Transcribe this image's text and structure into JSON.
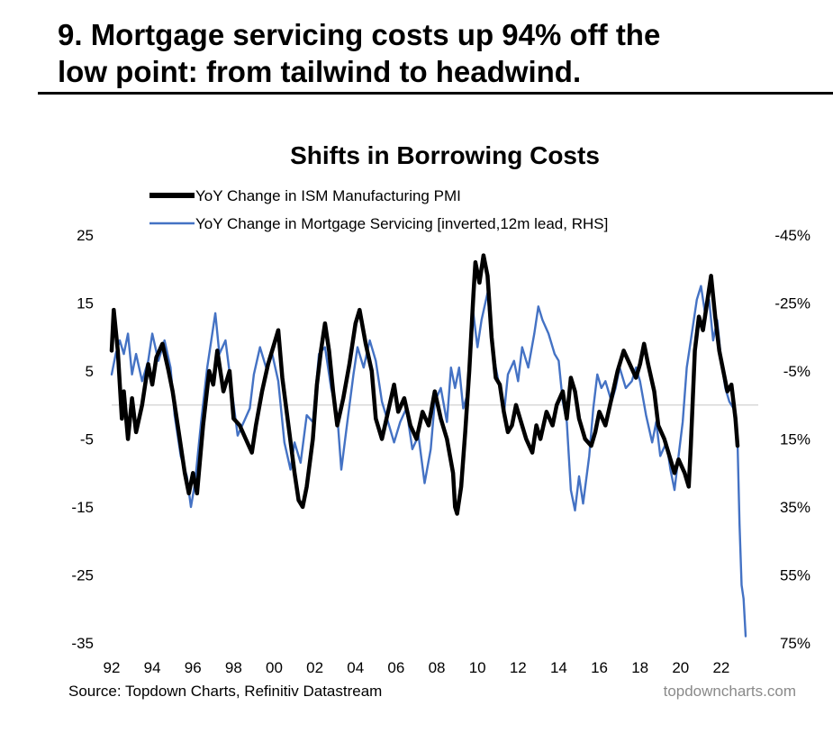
{
  "headline": {
    "line1": "9. Mortgage servicing costs up 94% off the",
    "line2": "low point: from tailwind to headwind."
  },
  "chart_data": {
    "type": "line",
    "title": "Shifts in Borrowing Costs",
    "legend_position": "top-left",
    "grid": false,
    "x_tick_labels": [
      "92",
      "94",
      "96",
      "98",
      "00",
      "02",
      "04",
      "06",
      "08",
      "10",
      "12",
      "14",
      "16",
      "18",
      "20",
      "22"
    ],
    "x_tick_years": [
      1992,
      1994,
      1996,
      1998,
      2000,
      2002,
      2004,
      2006,
      2008,
      2010,
      2012,
      2014,
      2016,
      2018,
      2020,
      2022
    ],
    "xlim": [
      1992,
      2023.2
    ],
    "y_left": {
      "lim": [
        -35,
        25
      ],
      "ticks": [
        25,
        15,
        5,
        -5,
        -15,
        -25,
        -35
      ],
      "labels": [
        "25",
        "15",
        "5",
        "-5",
        "-15",
        "-25",
        "-35"
      ]
    },
    "y_right": {
      "lim": [
        75,
        -45
      ],
      "inverted": true,
      "ticks": [
        -45,
        -25,
        -5,
        15,
        35,
        55,
        75
      ],
      "labels": [
        "-45%",
        "-25%",
        "-5%",
        "15%",
        "35%",
        "55%",
        "75%"
      ]
    },
    "zero_line": 0,
    "colors": {
      "pmi": "#000000",
      "mortgage": "#4472c4",
      "zero_line": "#d9d9d9"
    },
    "series": [
      {
        "name": "YoY Change in ISM Manufacturing PMI",
        "axis": "left",
        "color": "#000000",
        "points": [
          [
            1992.0,
            8
          ],
          [
            1992.1,
            14
          ],
          [
            1992.3,
            8
          ],
          [
            1992.5,
            -2
          ],
          [
            1992.6,
            2
          ],
          [
            1992.8,
            -5
          ],
          [
            1993.0,
            1
          ],
          [
            1993.2,
            -4
          ],
          [
            1993.5,
            0
          ],
          [
            1993.8,
            6
          ],
          [
            1994.0,
            3
          ],
          [
            1994.2,
            7
          ],
          [
            1994.5,
            9
          ],
          [
            1994.8,
            5
          ],
          [
            1995.0,
            2
          ],
          [
            1995.3,
            -4
          ],
          [
            1995.6,
            -10
          ],
          [
            1995.8,
            -13
          ],
          [
            1996.0,
            -10
          ],
          [
            1996.2,
            -13
          ],
          [
            1996.5,
            -3
          ],
          [
            1996.8,
            5
          ],
          [
            1997.0,
            3
          ],
          [
            1997.2,
            8
          ],
          [
            1997.5,
            2
          ],
          [
            1997.8,
            5
          ],
          [
            1998.0,
            -2
          ],
          [
            1998.3,
            -3
          ],
          [
            1998.6,
            -5
          ],
          [
            1998.9,
            -7
          ],
          [
            1999.1,
            -3
          ],
          [
            1999.4,
            2
          ],
          [
            1999.7,
            6
          ],
          [
            2000.0,
            9
          ],
          [
            2000.2,
            11
          ],
          [
            2000.4,
            4
          ],
          [
            2000.7,
            -3
          ],
          [
            2001.0,
            -10
          ],
          [
            2001.2,
            -14
          ],
          [
            2001.4,
            -15
          ],
          [
            2001.6,
            -12
          ],
          [
            2001.9,
            -5
          ],
          [
            2002.1,
            3
          ],
          [
            2002.3,
            8
          ],
          [
            2002.5,
            12
          ],
          [
            2002.7,
            8
          ],
          [
            2002.9,
            2
          ],
          [
            2003.1,
            -3
          ],
          [
            2003.4,
            1
          ],
          [
            2003.7,
            6
          ],
          [
            2004.0,
            12
          ],
          [
            2004.2,
            14
          ],
          [
            2004.5,
            9
          ],
          [
            2004.8,
            5
          ],
          [
            2005.0,
            -2
          ],
          [
            2005.3,
            -5
          ],
          [
            2005.6,
            -1
          ],
          [
            2005.9,
            3
          ],
          [
            2006.1,
            -1
          ],
          [
            2006.4,
            1
          ],
          [
            2006.7,
            -3
          ],
          [
            2007.0,
            -5
          ],
          [
            2007.3,
            -1
          ],
          [
            2007.6,
            -3
          ],
          [
            2007.9,
            2
          ],
          [
            2008.2,
            -2
          ],
          [
            2008.5,
            -5
          ],
          [
            2008.8,
            -10
          ],
          [
            2008.9,
            -15
          ],
          [
            2009.0,
            -16
          ],
          [
            2009.2,
            -12
          ],
          [
            2009.4,
            -4
          ],
          [
            2009.6,
            5
          ],
          [
            2009.8,
            16
          ],
          [
            2009.9,
            21
          ],
          [
            2010.1,
            18
          ],
          [
            2010.3,
            22
          ],
          [
            2010.5,
            19
          ],
          [
            2010.7,
            10
          ],
          [
            2010.9,
            4
          ],
          [
            2011.1,
            3
          ],
          [
            2011.3,
            -1
          ],
          [
            2011.5,
            -4
          ],
          [
            2011.7,
            -3
          ],
          [
            2011.9,
            0
          ],
          [
            2012.1,
            -2
          ],
          [
            2012.4,
            -5
          ],
          [
            2012.7,
            -7
          ],
          [
            2012.9,
            -3
          ],
          [
            2013.1,
            -5
          ],
          [
            2013.4,
            -1
          ],
          [
            2013.7,
            -3
          ],
          [
            2013.9,
            0
          ],
          [
            2014.2,
            2
          ],
          [
            2014.4,
            -2
          ],
          [
            2014.6,
            4
          ],
          [
            2014.8,
            2
          ],
          [
            2015.0,
            -2
          ],
          [
            2015.3,
            -5
          ],
          [
            2015.6,
            -6
          ],
          [
            2015.8,
            -4
          ],
          [
            2016.0,
            -1
          ],
          [
            2016.3,
            -3
          ],
          [
            2016.6,
            1
          ],
          [
            2016.9,
            5
          ],
          [
            2017.2,
            8
          ],
          [
            2017.5,
            6
          ],
          [
            2017.8,
            4
          ],
          [
            2018.0,
            6
          ],
          [
            2018.2,
            9
          ],
          [
            2018.4,
            6
          ],
          [
            2018.7,
            2
          ],
          [
            2018.9,
            -3
          ],
          [
            2019.2,
            -5
          ],
          [
            2019.5,
            -8
          ],
          [
            2019.7,
            -10
          ],
          [
            2019.9,
            -8
          ],
          [
            2020.2,
            -10
          ],
          [
            2020.4,
            -12
          ],
          [
            2020.5,
            -6
          ],
          [
            2020.7,
            8
          ],
          [
            2020.9,
            13
          ],
          [
            2021.1,
            11
          ],
          [
            2021.3,
            15
          ],
          [
            2021.5,
            19
          ],
          [
            2021.7,
            13
          ],
          [
            2021.9,
            8
          ],
          [
            2022.1,
            5
          ],
          [
            2022.3,
            2
          ],
          [
            2022.5,
            3
          ],
          [
            2022.7,
            -2
          ],
          [
            2022.8,
            -6
          ]
        ]
      },
      {
        "name": "YoY Change in Mortgage Servicing [inverted,12m lead, RHS]",
        "axis": "right",
        "color": "#4472c4",
        "points": [
          [
            1992.0,
            -4
          ],
          [
            1992.2,
            -10
          ],
          [
            1992.4,
            -14
          ],
          [
            1992.6,
            -10
          ],
          [
            1992.8,
            -16
          ],
          [
            1993.0,
            -4
          ],
          [
            1993.2,
            -10
          ],
          [
            1993.5,
            -2
          ],
          [
            1993.8,
            -8
          ],
          [
            1994.0,
            -16
          ],
          [
            1994.3,
            -8
          ],
          [
            1994.6,
            -14
          ],
          [
            1994.9,
            -6
          ],
          [
            1995.1,
            8
          ],
          [
            1995.4,
            20
          ],
          [
            1995.7,
            26
          ],
          [
            1995.9,
            35
          ],
          [
            1996.1,
            28
          ],
          [
            1996.4,
            10
          ],
          [
            1996.7,
            -6
          ],
          [
            1996.9,
            -14
          ],
          [
            1997.1,
            -22
          ],
          [
            1997.3,
            -10
          ],
          [
            1997.6,
            -14
          ],
          [
            1997.9,
            0
          ],
          [
            1998.2,
            14
          ],
          [
            1998.5,
            10
          ],
          [
            1998.8,
            6
          ],
          [
            1999.0,
            -4
          ],
          [
            1999.3,
            -12
          ],
          [
            1999.6,
            -6
          ],
          [
            1999.9,
            -10
          ],
          [
            2000.2,
            -2
          ],
          [
            2000.5,
            16
          ],
          [
            2000.8,
            24
          ],
          [
            2001.0,
            16
          ],
          [
            2001.3,
            22
          ],
          [
            2001.6,
            8
          ],
          [
            2001.9,
            10
          ],
          [
            2002.2,
            -10
          ],
          [
            2002.5,
            -12
          ],
          [
            2002.8,
            0
          ],
          [
            2003.1,
            8
          ],
          [
            2003.3,
            24
          ],
          [
            2003.6,
            10
          ],
          [
            2003.9,
            -4
          ],
          [
            2004.1,
            -12
          ],
          [
            2004.4,
            -6
          ],
          [
            2004.7,
            -14
          ],
          [
            2005.0,
            -8
          ],
          [
            2005.3,
            4
          ],
          [
            2005.6,
            10
          ],
          [
            2005.9,
            16
          ],
          [
            2006.2,
            10
          ],
          [
            2006.5,
            6
          ],
          [
            2006.8,
            18
          ],
          [
            2007.1,
            14
          ],
          [
            2007.4,
            28
          ],
          [
            2007.7,
            18
          ],
          [
            2007.9,
            4
          ],
          [
            2008.2,
            0
          ],
          [
            2008.5,
            10
          ],
          [
            2008.7,
            -6
          ],
          [
            2008.9,
            0
          ],
          [
            2009.1,
            -6
          ],
          [
            2009.3,
            6
          ],
          [
            2009.5,
            2
          ],
          [
            2009.6,
            -8
          ],
          [
            2009.8,
            -22
          ],
          [
            2010.0,
            -12
          ],
          [
            2010.2,
            -20
          ],
          [
            2010.5,
            -28
          ],
          [
            2010.7,
            -14
          ],
          [
            2010.9,
            -6
          ],
          [
            2011.1,
            0
          ],
          [
            2011.3,
            8
          ],
          [
            2011.5,
            -4
          ],
          [
            2011.8,
            -8
          ],
          [
            2012.0,
            -2
          ],
          [
            2012.2,
            -12
          ],
          [
            2012.5,
            -6
          ],
          [
            2012.8,
            -16
          ],
          [
            2013.0,
            -24
          ],
          [
            2013.2,
            -20
          ],
          [
            2013.5,
            -16
          ],
          [
            2013.8,
            -10
          ],
          [
            2014.0,
            -8
          ],
          [
            2014.2,
            4
          ],
          [
            2014.4,
            10
          ],
          [
            2014.6,
            30
          ],
          [
            2014.8,
            36
          ],
          [
            2015.0,
            26
          ],
          [
            2015.2,
            34
          ],
          [
            2015.5,
            20
          ],
          [
            2015.7,
            6
          ],
          [
            2015.9,
            -4
          ],
          [
            2016.1,
            0
          ],
          [
            2016.3,
            -2
          ],
          [
            2016.6,
            4
          ],
          [
            2016.8,
            0
          ],
          [
            2017.0,
            -6
          ],
          [
            2017.3,
            0
          ],
          [
            2017.6,
            -2
          ],
          [
            2017.8,
            -6
          ],
          [
            2018.0,
            -2
          ],
          [
            2018.3,
            8
          ],
          [
            2018.6,
            16
          ],
          [
            2018.8,
            10
          ],
          [
            2019.0,
            20
          ],
          [
            2019.3,
            16
          ],
          [
            2019.5,
            24
          ],
          [
            2019.7,
            30
          ],
          [
            2019.9,
            20
          ],
          [
            2020.1,
            10
          ],
          [
            2020.3,
            -6
          ],
          [
            2020.5,
            -14
          ],
          [
            2020.8,
            -26
          ],
          [
            2021.0,
            -30
          ],
          [
            2021.2,
            -22
          ],
          [
            2021.4,
            -26
          ],
          [
            2021.6,
            -14
          ],
          [
            2021.8,
            -20
          ],
          [
            2022.0,
            -8
          ],
          [
            2022.2,
            0
          ],
          [
            2022.4,
            4
          ],
          [
            2022.6,
            6
          ],
          [
            2022.8,
            16
          ],
          [
            2022.9,
            40
          ],
          [
            2023.0,
            58
          ],
          [
            2023.1,
            62
          ],
          [
            2023.2,
            73
          ]
        ]
      }
    ]
  },
  "source": "Source: Topdown Charts, Refinitiv Datastream",
  "brand": "topdowncharts.com"
}
